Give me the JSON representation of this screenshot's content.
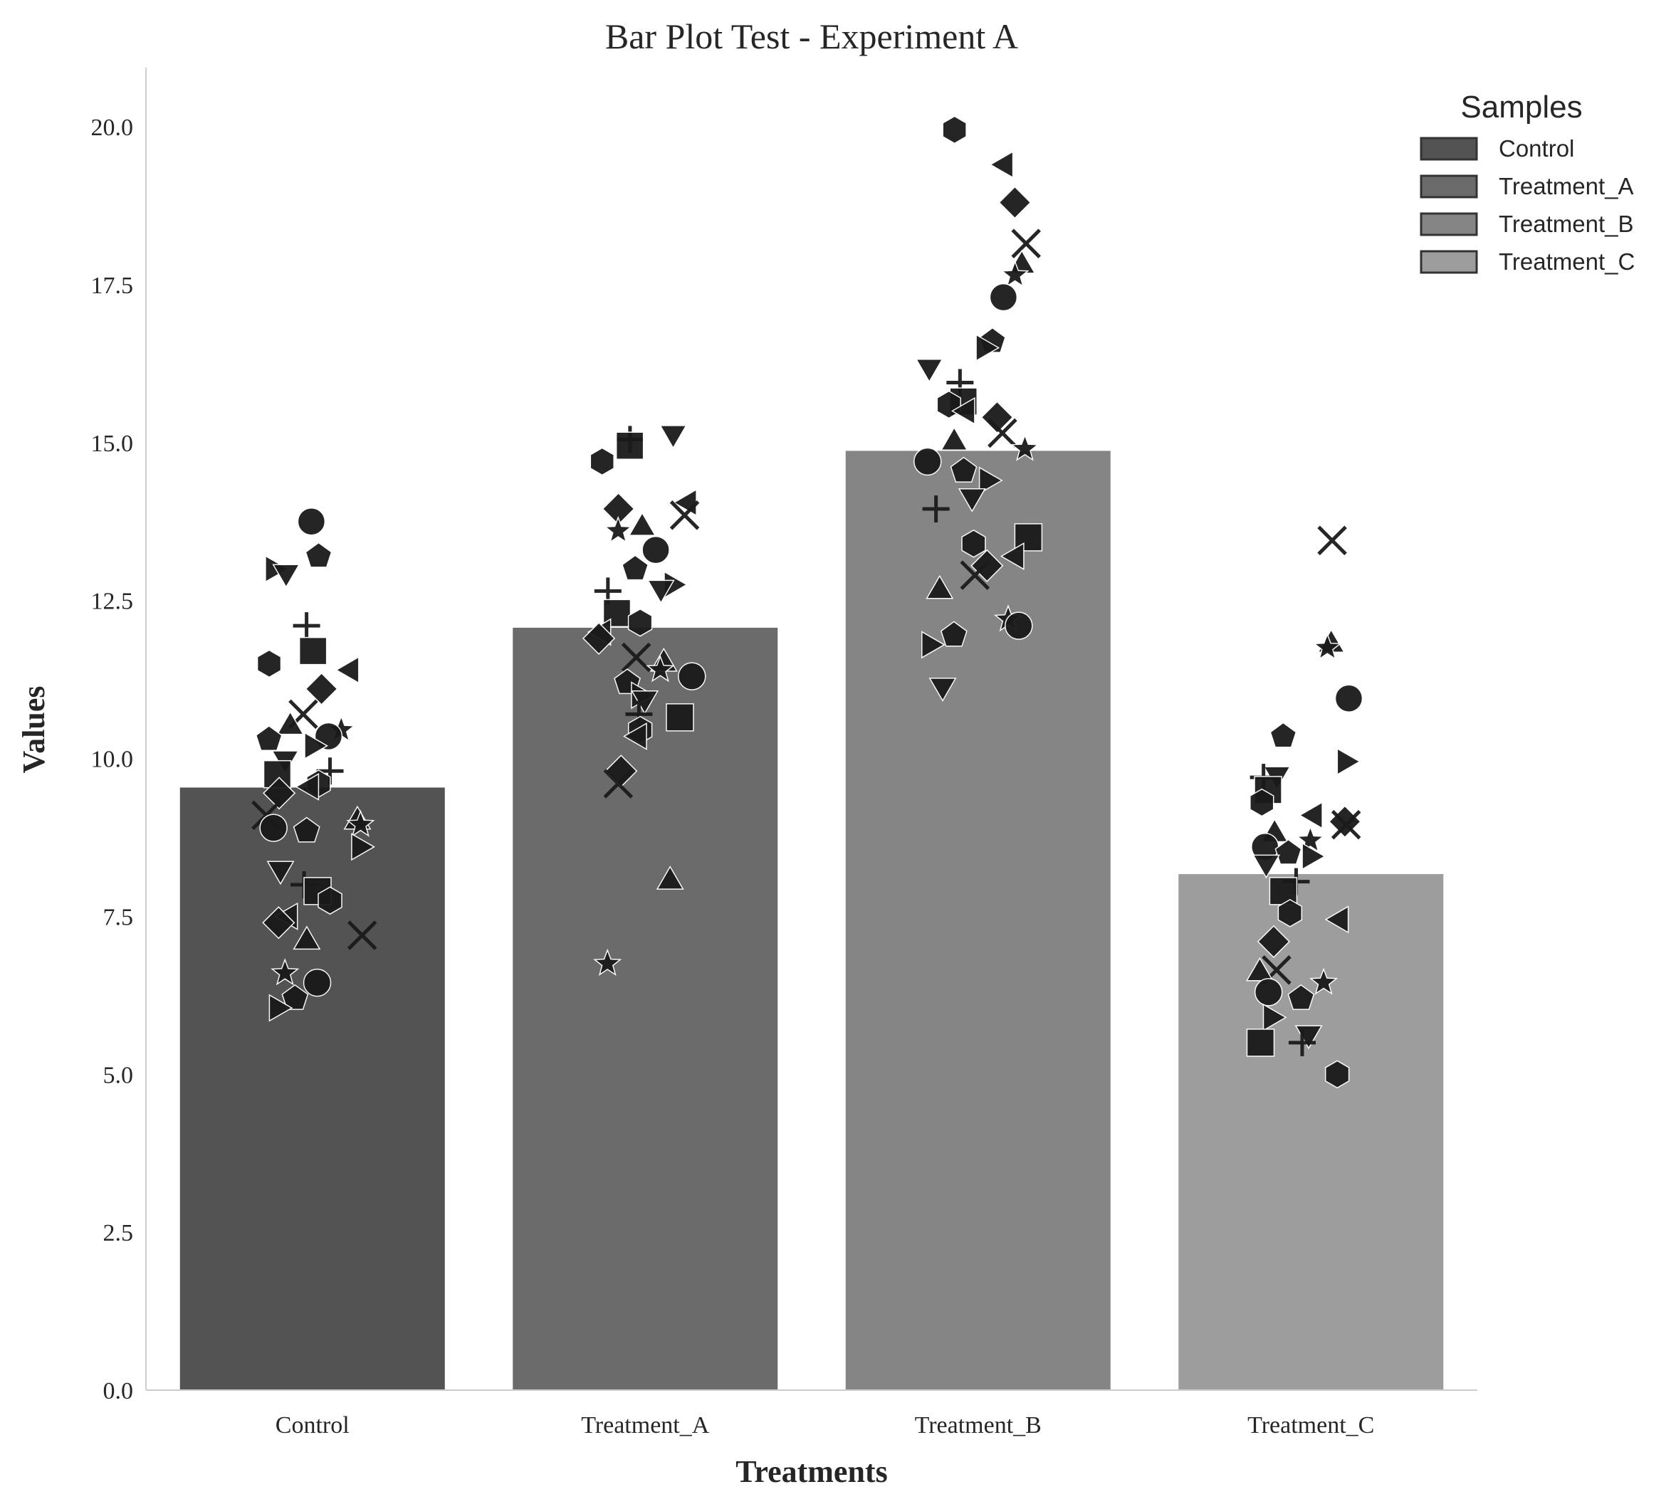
{
  "chart_data": {
    "type": "bar",
    "title": "Bar Plot Test - Experiment A",
    "xlabel": "Treatments",
    "ylabel": "Values",
    "ylim": [
      0,
      21
    ],
    "yticks": [
      "0.0",
      "2.5",
      "5.0",
      "7.5",
      "10.0",
      "12.5",
      "15.0",
      "17.5",
      "20.0"
    ],
    "grid": false,
    "categories": [
      "Control",
      "Treatment_A",
      "Treatment_B",
      "Treatment_C"
    ],
    "values": [
      9.55,
      12.08,
      14.88,
      8.18
    ],
    "colors": [
      "#535353",
      "#6b6b6b",
      "#858585",
      "#9d9d9d"
    ],
    "point_color": "#1a1a1a",
    "legend": {
      "title": "Samples",
      "position": "top-right",
      "entries": [
        "Control",
        "Treatment_A",
        "Treatment_B",
        "Treatment_C"
      ]
    },
    "points": [
      {
        "category": "Control",
        "values": [
          13.75,
          13.2,
          13.0,
          12.95,
          12.1,
          11.7,
          11.5,
          11.4,
          11.1,
          10.7,
          10.5,
          10.45,
          10.35,
          10.3,
          10.2,
          10.0,
          9.8,
          9.75,
          9.6,
          9.55,
          9.45,
          9.1,
          9.0,
          8.95,
          8.9,
          8.85,
          8.6,
          8.25,
          8.0,
          7.9,
          7.75,
          7.5,
          7.4,
          7.2,
          7.1,
          6.6,
          6.45,
          6.2,
          6.05
        ]
      },
      {
        "category": "Treatment_A",
        "values": [
          15.15,
          15.05,
          14.95,
          14.7,
          14.05,
          13.95,
          13.85,
          13.65,
          13.6,
          13.3,
          13.0,
          12.75,
          12.7,
          12.65,
          12.3,
          12.15,
          12.0,
          11.9,
          11.6,
          11.5,
          11.4,
          11.3,
          11.2,
          11.0,
          10.95,
          10.7,
          10.65,
          10.45,
          10.35,
          9.8,
          9.6,
          8.05,
          6.75
        ]
      },
      {
        "category": "Treatment_B",
        "values": [
          19.95,
          19.4,
          18.8,
          18.15,
          17.8,
          17.65,
          17.3,
          16.6,
          16.5,
          16.2,
          15.95,
          15.65,
          15.6,
          15.5,
          15.4,
          15.15,
          15.0,
          14.9,
          14.7,
          14.55,
          14.4,
          14.15,
          13.95,
          13.5,
          13.4,
          13.2,
          13.05,
          12.9,
          12.65,
          12.2,
          12.1,
          11.95,
          11.8,
          11.15
        ]
      },
      {
        "category": "Treatment_C",
        "values": [
          13.45,
          11.8,
          11.75,
          10.95,
          10.35,
          9.95,
          9.75,
          9.7,
          9.5,
          9.3,
          9.1,
          9.0,
          8.95,
          8.8,
          8.7,
          8.6,
          8.5,
          8.45,
          8.35,
          8.05,
          7.9,
          7.55,
          7.45,
          7.1,
          6.65,
          6.6,
          6.45,
          6.3,
          6.2,
          5.9,
          5.65,
          5.5,
          5.5,
          5.0
        ]
      }
    ]
  }
}
